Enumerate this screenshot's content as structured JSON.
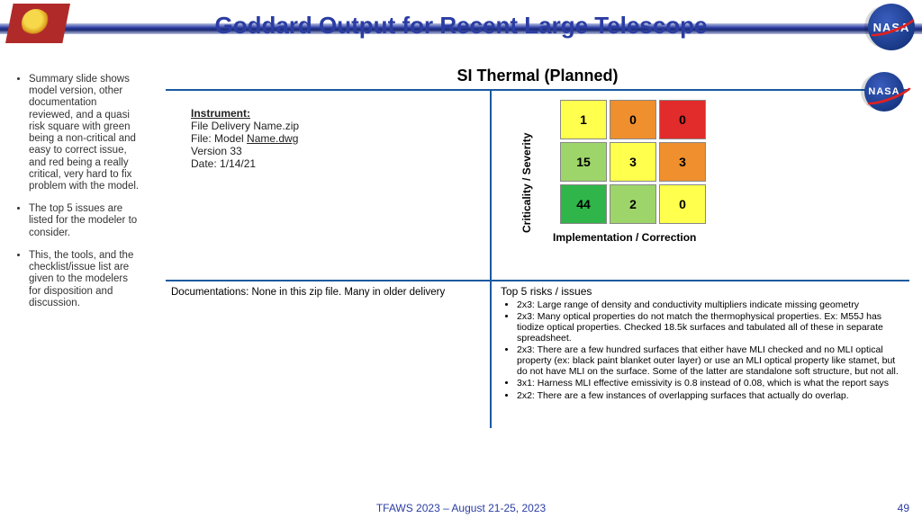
{
  "header": {
    "title": "Goddard Output for Recent Large Telescope",
    "nasa_text": "NASA"
  },
  "left_bullets": [
    "Summary slide shows model version, other documentation reviewed, and a quasi risk square with green being a non-critical and easy to correct issue, and red being a really critical, very hard to fix problem with the model.",
    "The top 5 issues are listed for the modeler to consider.",
    "This, the tools, and the checklist/issue list are given to the modelers for disposition and discussion."
  ],
  "panel": {
    "title": "SI Thermal (Planned)",
    "instrument": {
      "heading": "Instrument:",
      "line1": "File Delivery Name.zip",
      "line2_pre": "File: Model ",
      "line2_ul": "Name.dwg",
      "line3": "Version 33",
      "line4": "Date: 1/14/21"
    },
    "matrix": {
      "ylabel": "Criticality / Severity",
      "xlabel": "Implementation / Correction",
      "cells": [
        {
          "v": "1",
          "bg": "#ffff4d"
        },
        {
          "v": "0",
          "bg": "#ef8f2e"
        },
        {
          "v": "0",
          "bg": "#e22b2b"
        },
        {
          "v": "15",
          "bg": "#9ed56a"
        },
        {
          "v": "3",
          "bg": "#ffff4d"
        },
        {
          "v": "3",
          "bg": "#ef8f2e"
        },
        {
          "v": "44",
          "bg": "#2fb54a"
        },
        {
          "v": "2",
          "bg": "#9ed56a"
        },
        {
          "v": "0",
          "bg": "#ffff4d"
        }
      ]
    },
    "doc_line": "Documentations: None in this zip file.  Many in older delivery",
    "risks_title": "Top 5 risks / issues",
    "risks": [
      "2x3: Large range of density and conductivity multipliers indicate missing geometry",
      "2x3: Many optical properties do not match the thermophysical properties.  Ex: M55J has tiodize optical properties.  Checked 18.5k surfaces and tabulated all of these in separate spreadsheet.",
      "2x3: There are a few hundred surfaces that either have MLI checked and no MLI optical property (ex: black paint blanket outer layer) or use an MLI optical property like stamet, but do not have MLI on the surface.  Some of the latter are standalone soft structure, but not all.",
      "3x1: Harness MLI effective emissivity is 0.8 instead of 0.08, which is what the report says",
      "2x2: There are a few instances of overlapping surfaces that actually do overlap."
    ]
  },
  "footer": {
    "text": "TFAWS 2023 – August 21-25, 2023",
    "page": "49"
  }
}
